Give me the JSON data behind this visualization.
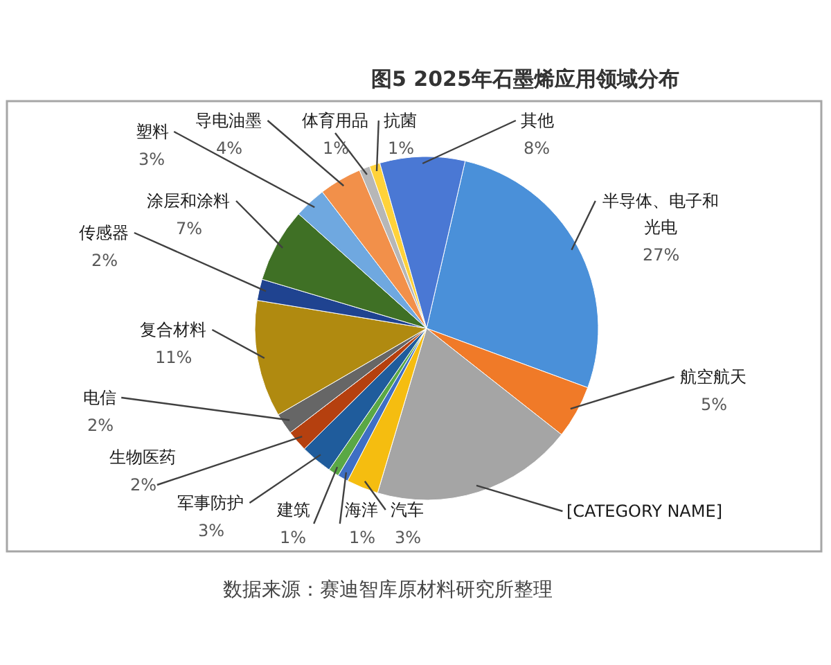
{
  "chart_data": {
    "type": "pie",
    "title": "图5 2025年石墨烯应用领域分布",
    "categories": [
      "半导体、电子和光电",
      "航空航天",
      "[CATEGORY NAME]",
      "汽车",
      "海洋",
      "建筑",
      "军事防护",
      "生物医药",
      "电信",
      "复合材料",
      "传感器",
      "涂层和涂料",
      "塑料",
      "导电油墨",
      "体育用品",
      "抗菌",
      "其他"
    ],
    "values": [
      27,
      5,
      19,
      3,
      1,
      1,
      3,
      2,
      2,
      11,
      2,
      7,
      3,
      4,
      1,
      1,
      8
    ],
    "value_labels": [
      "27%",
      "5%",
      null,
      "3%",
      "1%",
      "1%",
      "3%",
      "2%",
      "2%",
      "11%",
      "2%",
      "7%",
      "3%",
      "4%",
      "1%",
      "1%",
      "8%"
    ],
    "colors": [
      "#4a90d9",
      "#f07a28",
      "#a5a5a5",
      "#f5bd10",
      "#3f6fc4",
      "#5aa845",
      "#1f5c9c",
      "#b5400f",
      "#666666",
      "#b08a10",
      "#1f4390",
      "#3f7025",
      "#6fa8e0",
      "#f2904a",
      "#b7b7b7",
      "#ffd23a",
      "#4a78d4"
    ],
    "annotations": [
      "数据来源：赛迪智库原材料研究所整理"
    ]
  }
}
